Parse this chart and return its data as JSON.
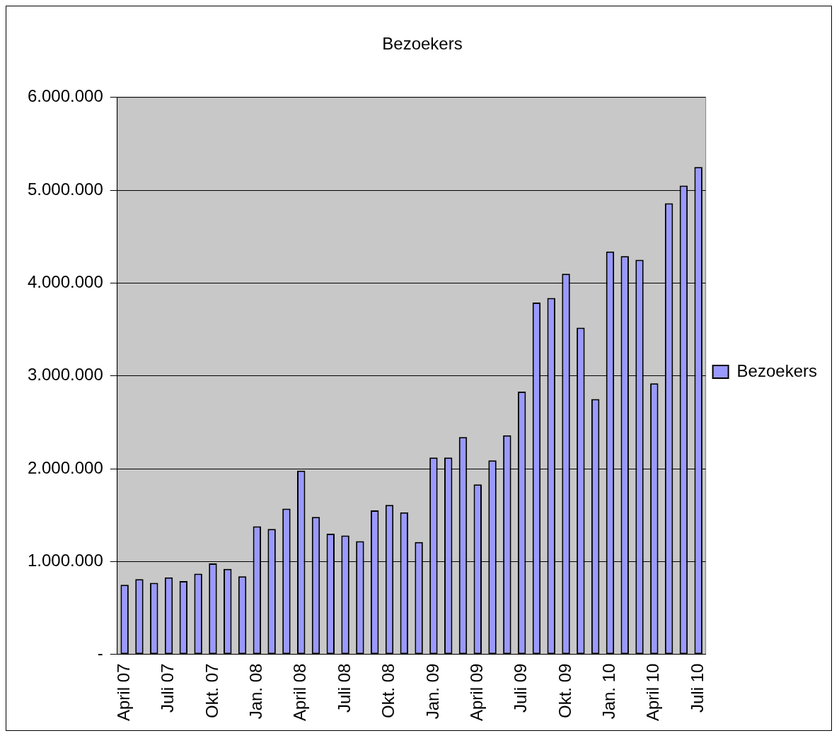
{
  "chart_data": {
    "type": "bar",
    "title": "Bezoekers",
    "categories": [
      "April 07",
      null,
      null,
      "Juli 07",
      null,
      null,
      "Okt. 07",
      null,
      null,
      "Jan. 08",
      null,
      null,
      "April 08",
      null,
      null,
      "Juli 08",
      null,
      null,
      "Okt. 08",
      null,
      null,
      "Jan. 09",
      null,
      null,
      "April 09",
      null,
      null,
      "Juli 09",
      null,
      null,
      "Okt. 09",
      null,
      null,
      "Jan. 10",
      null,
      null,
      "April 10",
      null,
      null,
      "Juli 10"
    ],
    "series": [
      {
        "name": "Bezoekers",
        "color": "#9999ff",
        "values": [
          750000,
          810000,
          770000,
          830000,
          790000,
          870000,
          980000,
          920000,
          840000,
          1380000,
          1350000,
          1570000,
          1980000,
          1480000,
          1300000,
          1280000,
          1220000,
          1550000,
          1610000,
          1530000,
          1210000,
          2120000,
          2120000,
          2340000,
          1830000,
          2090000,
          2360000,
          2830000,
          3790000,
          3840000,
          4100000,
          3520000,
          2750000,
          4340000,
          4290000,
          4250000,
          2920000,
          4860000,
          5050000,
          5250000
        ]
      }
    ],
    "ylim": [
      0,
      6000000
    ],
    "yticks": [
      {
        "value": 0,
        "label": "-"
      },
      {
        "value": 1000000,
        "label": "1.000.000"
      },
      {
        "value": 2000000,
        "label": "2.000.000"
      },
      {
        "value": 3000000,
        "label": "3.000.000"
      },
      {
        "value": 4000000,
        "label": "4.000.000"
      },
      {
        "value": 5000000,
        "label": "5.000.000"
      },
      {
        "value": 6000000,
        "label": "6.000.000"
      }
    ],
    "grid": "y",
    "legend": "right"
  }
}
